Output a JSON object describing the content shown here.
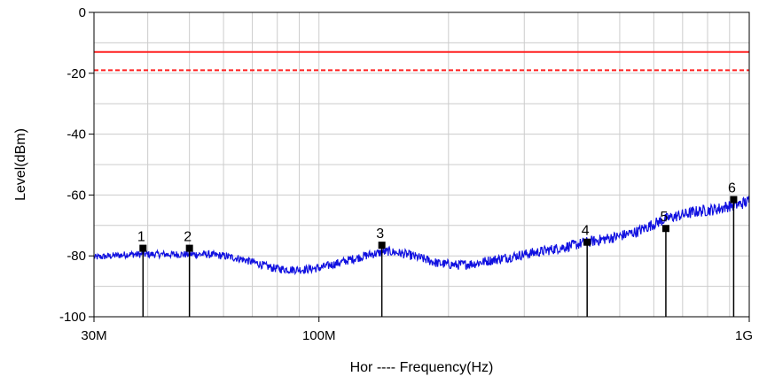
{
  "chart_data": {
    "type": "line",
    "title": "",
    "xlabel": "Hor ---- Frequency(Hz)",
    "ylabel": "Level(dBm)",
    "x_scale": "log",
    "xlim": [
      30000000,
      1000000000
    ],
    "ylim": [
      -100,
      0
    ],
    "x_ticks": [
      {
        "value": 30000000,
        "label": "30M"
      },
      {
        "value": 100000000,
        "label": "100M"
      },
      {
        "value": 1000000000,
        "label": "1G"
      }
    ],
    "y_ticks": [
      {
        "value": 0,
        "label": "0"
      },
      {
        "value": -20,
        "label": "-20"
      },
      {
        "value": -40,
        "label": "-40"
      },
      {
        "value": -60,
        "label": "-60"
      },
      {
        "value": -80,
        "label": "-80"
      },
      {
        "value": -100,
        "label": "-100"
      }
    ],
    "grid": true,
    "colors": {
      "trace": "#1010e0",
      "limit": "#ff2020",
      "margin": "#ff2020",
      "grid": "#cccccc",
      "marker": "#000000"
    },
    "limit_lines": [
      {
        "level": -13,
        "style": "solid"
      },
      {
        "level": -19,
        "style": "dashed"
      }
    ],
    "series": [
      {
        "x": [
          30000000,
          33000000,
          36000000,
          39000000,
          42000000,
          46000000,
          50000000,
          55000000,
          60000000,
          66000000,
          72000000,
          78000000,
          85000000,
          92000000,
          100000000,
          110000000,
          120000000,
          132000000,
          145000000,
          160000000,
          175000000,
          190000000,
          210000000,
          230000000,
          250000000,
          275000000,
          300000000,
          330000000,
          360000000,
          390000000,
          420000000,
          460000000,
          500000000,
          550000000,
          600000000,
          650000000,
          700000000,
          750000000,
          800000000,
          850000000,
          900000000,
          950000000,
          1000000000
        ],
        "y": [
          -80.5,
          -80,
          -79.5,
          -79.5,
          -79.5,
          -79.5,
          -79.5,
          -79.5,
          -80,
          -81,
          -82.5,
          -84,
          -84.5,
          -84.5,
          -84,
          -82.5,
          -81,
          -79.5,
          -78.5,
          -79.5,
          -81,
          -82.5,
          -83,
          -82.5,
          -81.5,
          -80.5,
          -79.5,
          -78.5,
          -77.5,
          -76.5,
          -75.5,
          -74.5,
          -73.5,
          -72,
          -69.5,
          -67.5,
          -66.5,
          -65.5,
          -65,
          -64.5,
          -63.5,
          -63,
          -62
        ]
      }
    ],
    "markers": [
      {
        "label": "1",
        "x": 39000000,
        "y": -77.5
      },
      {
        "label": "2",
        "x": 50000000,
        "y": -77.5
      },
      {
        "label": "3",
        "x": 140000000,
        "y": -76.5
      },
      {
        "label": "4",
        "x": 420000000,
        "y": -75.5
      },
      {
        "label": "5",
        "x": 640000000,
        "y": -71
      },
      {
        "label": "6",
        "x": 920000000,
        "y": -61.5
      }
    ]
  }
}
